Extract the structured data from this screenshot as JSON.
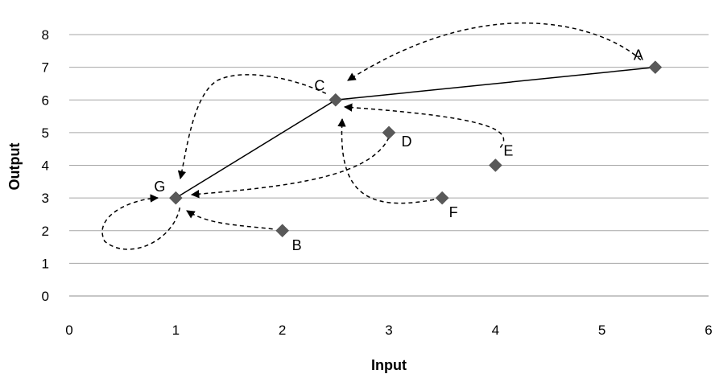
{
  "chart_data": {
    "type": "scatter",
    "xlabel": "Input",
    "ylabel": "Output",
    "xlim": [
      0,
      6
    ],
    "ylim": [
      0,
      8
    ],
    "xticks": [
      0,
      1,
      2,
      3,
      4,
      5,
      6
    ],
    "yticks": [
      0,
      1,
      2,
      3,
      4,
      5,
      6,
      7,
      8
    ],
    "grid": "horizontal",
    "marker": "diamond",
    "marker_color": "#595959",
    "points": [
      {
        "label": "A",
        "x": 5.5,
        "y": 7
      },
      {
        "label": "B",
        "x": 2,
        "y": 2
      },
      {
        "label": "C",
        "x": 2.5,
        "y": 6
      },
      {
        "label": "D",
        "x": 3,
        "y": 5
      },
      {
        "label": "E",
        "x": 4,
        "y": 4
      },
      {
        "label": "F",
        "x": 3.5,
        "y": 3
      },
      {
        "label": "G",
        "x": 1,
        "y": 3
      }
    ],
    "frontier_line": {
      "style": "solid",
      "through": [
        "G",
        "C",
        "A"
      ]
    },
    "arrows": [
      {
        "from": "A",
        "to": "C",
        "style": "dashed"
      },
      {
        "from": "B",
        "to": "G",
        "style": "dashed"
      },
      {
        "from": "C",
        "to": "G",
        "style": "dashed"
      },
      {
        "from": "D",
        "to": "G",
        "style": "dashed"
      },
      {
        "from": "E",
        "to": "C",
        "style": "dashed"
      },
      {
        "from": "F",
        "to": "C",
        "style": "dashed"
      },
      {
        "from": "G",
        "to": "G",
        "style": "dashed"
      }
    ]
  }
}
